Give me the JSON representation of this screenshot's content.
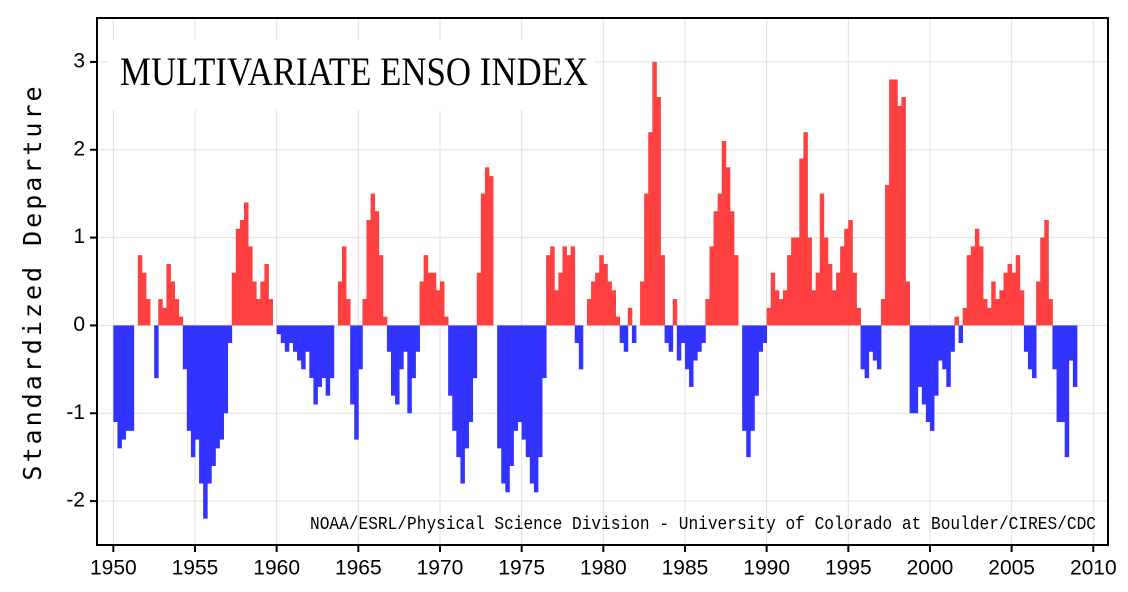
{
  "chart_data": {
    "type": "area",
    "title": "MULTIVARIATE ENSO INDEX",
    "ylabel": "Standardized Departure",
    "annotation": "NOAA/ESRL/Physical Science Division - University of Colorado at Boulder/CIRES/CDC",
    "positive_color": "#ff4040",
    "negative_color": "#3333ff",
    "grid": true,
    "xlim": [
      1949,
      2010.9
    ],
    "ylim": [
      -2.5,
      3.5
    ],
    "xticks": [
      1950,
      1955,
      1960,
      1965,
      1970,
      1975,
      1980,
      1985,
      1990,
      1995,
      2000,
      2005,
      2010
    ],
    "yticks": [
      -2,
      -1,
      0,
      1,
      2,
      3
    ],
    "x": [
      1950,
      1950.25,
      1950.5,
      1950.75,
      1951,
      1951.25,
      1951.5,
      1951.75,
      1952,
      1952.25,
      1952.5,
      1952.75,
      1953,
      1953.25,
      1953.5,
      1953.75,
      1954,
      1954.25,
      1954.5,
      1954.75,
      1955,
      1955.25,
      1955.5,
      1955.75,
      1956,
      1956.25,
      1956.5,
      1956.75,
      1957,
      1957.25,
      1957.5,
      1957.75,
      1958,
      1958.25,
      1958.5,
      1958.75,
      1959,
      1959.25,
      1959.5,
      1959.75,
      1960,
      1960.25,
      1960.5,
      1960.75,
      1961,
      1961.25,
      1961.5,
      1961.75,
      1962,
      1962.25,
      1962.5,
      1962.75,
      1963,
      1963.25,
      1963.5,
      1963.75,
      1964,
      1964.25,
      1964.5,
      1964.75,
      1965,
      1965.25,
      1965.5,
      1965.75,
      1966,
      1966.25,
      1966.5,
      1966.75,
      1967,
      1967.25,
      1967.5,
      1967.75,
      1968,
      1968.25,
      1968.5,
      1968.75,
      1969,
      1969.25,
      1969.5,
      1969.75,
      1970,
      1970.25,
      1970.5,
      1970.75,
      1971,
      1971.25,
      1971.5,
      1971.75,
      1972,
      1972.25,
      1972.5,
      1972.75,
      1973,
      1973.25,
      1973.5,
      1973.75,
      1974,
      1974.25,
      1974.5,
      1974.75,
      1975,
      1975.25,
      1975.5,
      1975.75,
      1976,
      1976.25,
      1976.5,
      1976.75,
      1977,
      1977.25,
      1977.5,
      1977.75,
      1978,
      1978.25,
      1978.5,
      1978.75,
      1979,
      1979.25,
      1979.5,
      1979.75,
      1980,
      1980.25,
      1980.5,
      1980.75,
      1981,
      1981.25,
      1981.5,
      1981.75,
      1982,
      1982.25,
      1982.5,
      1982.75,
      1983,
      1983.25,
      1983.5,
      1983.75,
      1984,
      1984.25,
      1984.5,
      1984.75,
      1985,
      1985.25,
      1985.5,
      1985.75,
      1986,
      1986.25,
      1986.5,
      1986.75,
      1987,
      1987.25,
      1987.5,
      1987.75,
      1988,
      1988.25,
      1988.5,
      1988.75,
      1989,
      1989.25,
      1989.5,
      1989.75,
      1990,
      1990.25,
      1990.5,
      1990.75,
      1991,
      1991.25,
      1991.5,
      1991.75,
      1992,
      1992.25,
      1992.5,
      1992.75,
      1993,
      1993.25,
      1993.5,
      1993.75,
      1994,
      1994.25,
      1994.5,
      1994.75,
      1995,
      1995.25,
      1995.5,
      1995.75,
      1996,
      1996.25,
      1996.5,
      1996.75,
      1997,
      1997.25,
      1997.5,
      1997.75,
      1998,
      1998.25,
      1998.5,
      1998.75,
      1999,
      1999.25,
      1999.5,
      1999.75,
      2000,
      2000.25,
      2000.5,
      2000.75,
      2001,
      2001.25,
      2001.5,
      2001.75,
      2002,
      2002.25,
      2002.5,
      2002.75,
      2003,
      2003.25,
      2003.5,
      2003.75,
      2004,
      2004.25,
      2004.5,
      2004.75,
      2005,
      2005.25,
      2005.5,
      2005.75,
      2006,
      2006.25,
      2006.5,
      2006.75,
      2007,
      2007.25,
      2007.5,
      2007.75,
      2008,
      2008.25,
      2008.5,
      2008.75
    ],
    "values": [
      -1.1,
      -1.4,
      -1.3,
      -1.2,
      -1.2,
      0.0,
      0.8,
      0.6,
      0.3,
      0.0,
      -0.6,
      0.3,
      0.2,
      0.7,
      0.5,
      0.3,
      0.1,
      -0.5,
      -1.2,
      -1.5,
      -1.3,
      -1.8,
      -2.2,
      -1.8,
      -1.6,
      -1.4,
      -1.3,
      -1.0,
      -0.2,
      0.6,
      1.1,
      1.2,
      1.4,
      0.9,
      0.5,
      0.3,
      0.5,
      0.7,
      0.3,
      0.0,
      -0.1,
      -0.2,
      -0.3,
      -0.2,
      -0.3,
      -0.4,
      -0.5,
      -0.3,
      -0.6,
      -0.9,
      -0.7,
      -0.6,
      -0.8,
      -0.6,
      0.0,
      0.5,
      0.9,
      0.3,
      -0.9,
      -1.3,
      -0.5,
      0.3,
      1.2,
      1.5,
      1.3,
      0.8,
      0.1,
      -0.3,
      -0.8,
      -0.9,
      -0.5,
      -0.3,
      -1.0,
      -0.6,
      -0.3,
      0.5,
      0.8,
      0.6,
      0.6,
      0.4,
      0.5,
      0.1,
      -0.8,
      -1.2,
      -1.5,
      -1.8,
      -1.4,
      -1.1,
      -0.6,
      0.6,
      1.5,
      1.8,
      1.7,
      0.0,
      -1.4,
      -1.8,
      -1.9,
      -1.6,
      -1.2,
      -1.1,
      -1.3,
      -1.5,
      -1.8,
      -1.9,
      -1.5,
      -0.6,
      0.8,
      0.9,
      0.4,
      0.6,
      0.9,
      0.8,
      0.9,
      -0.2,
      -0.5,
      0.0,
      0.3,
      0.5,
      0.6,
      0.8,
      0.7,
      0.5,
      0.4,
      0.1,
      -0.2,
      -0.3,
      0.2,
      -0.2,
      0.0,
      0.5,
      1.5,
      2.2,
      3.0,
      2.6,
      0.8,
      -0.2,
      -0.3,
      0.3,
      -0.4,
      -0.2,
      -0.5,
      -0.7,
      -0.4,
      -0.3,
      -0.2,
      0.3,
      0.9,
      1.3,
      1.5,
      2.1,
      1.8,
      1.3,
      0.8,
      0.0,
      -1.2,
      -1.5,
      -1.2,
      -0.8,
      -0.3,
      -0.2,
      0.2,
      0.6,
      0.4,
      0.3,
      0.4,
      0.8,
      1.0,
      1.0,
      1.9,
      2.2,
      1.0,
      0.4,
      0.6,
      1.5,
      1.0,
      0.7,
      0.4,
      0.6,
      0.9,
      1.1,
      1.2,
      0.6,
      0.2,
      -0.5,
      -0.6,
      -0.3,
      -0.4,
      -0.5,
      0.3,
      1.6,
      2.8,
      2.8,
      2.5,
      2.6,
      0.5,
      -1.0,
      -1.0,
      -0.7,
      -0.9,
      -1.1,
      -1.2,
      -0.8,
      -0.4,
      -0.5,
      -0.7,
      -0.3,
      0.1,
      -0.2,
      0.2,
      0.8,
      0.9,
      1.1,
      0.9,
      0.3,
      0.2,
      0.5,
      0.3,
      0.4,
      0.6,
      0.7,
      0.6,
      0.8,
      0.4,
      -0.3,
      -0.5,
      -0.6,
      0.5,
      1.0,
      1.2,
      0.3,
      -0.5,
      -1.1,
      -1.1,
      -1.5,
      -0.4,
      -0.7
    ]
  }
}
